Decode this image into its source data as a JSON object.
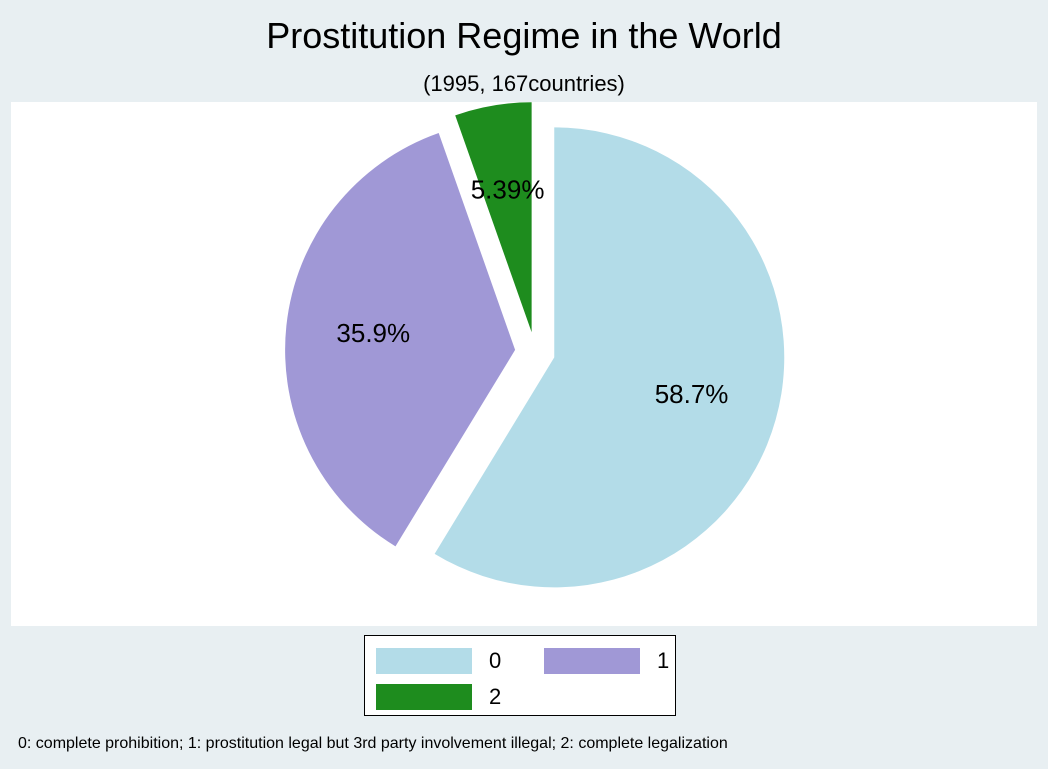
{
  "chart_data": {
    "type": "pie",
    "title": "Prostitution Regime in the World",
    "subtitle": "(1995, 167countries)",
    "categories": [
      "0",
      "1",
      "2"
    ],
    "values": [
      58.7,
      35.9,
      5.39
    ],
    "labels": [
      "58.7%",
      "35.9%",
      "5.39%"
    ],
    "colors": [
      "#b3dce8",
      "#a098d6",
      "#1e8c1e"
    ],
    "exploded": true,
    "legend_placement": "bottom",
    "note": "0: complete prohibition;  1: prostitution legal but 3rd party involvement illegal;  2: complete legalization"
  }
}
